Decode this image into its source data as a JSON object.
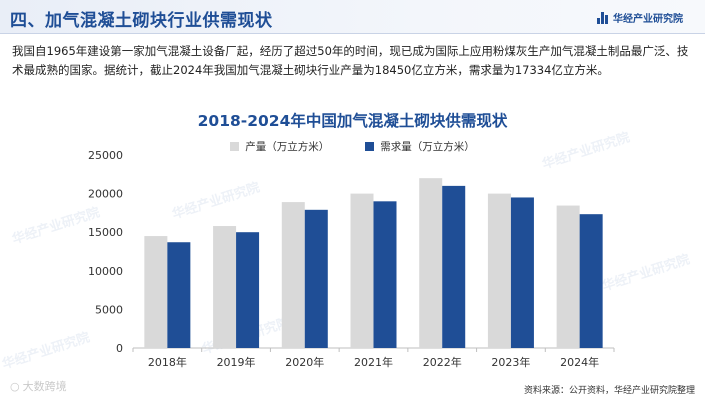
{
  "header": {
    "title": "四、加气混凝土砌块行业供需现状"
  },
  "brand": {
    "name": "华经产业研究院",
    "icon": "bar-logo-icon"
  },
  "description": "我国自1965年建设第一家加气混凝土设备厂起，经历了超过50年的时间，现已成为国际上应用粉煤灰生产加气混凝土制品最广泛、技术最成熟的国家。据统计，截止2024年我国加气混凝土砌块行业产量为18450亿立方米，需求量为17334亿立方米。",
  "watermark": "华经产业研究院",
  "source": "资料来源：公开资料，华经产业研究院整理",
  "corner_logo": "大数跨境",
  "chart_data": {
    "type": "bar",
    "title": "2018-2024年中国加气混凝土砌块供需现状",
    "categories": [
      "2018年",
      "2019年",
      "2020年",
      "2021年",
      "2022年",
      "2023年",
      "2024年"
    ],
    "series": [
      {
        "name": "产量（万立方米）",
        "color": "#d9d9d9",
        "values": [
          14500,
          15800,
          18900,
          20000,
          22000,
          20000,
          18450
        ]
      },
      {
        "name": "需求量（万立方米）",
        "color": "#1f4e96",
        "values": [
          13700,
          15000,
          17900,
          19000,
          21000,
          19500,
          17334
        ]
      }
    ],
    "yticks": [
      0,
      5000,
      10000,
      15000,
      20000,
      25000
    ],
    "ylim": [
      0,
      25000
    ],
    "grid": false,
    "legend": "top-center"
  }
}
